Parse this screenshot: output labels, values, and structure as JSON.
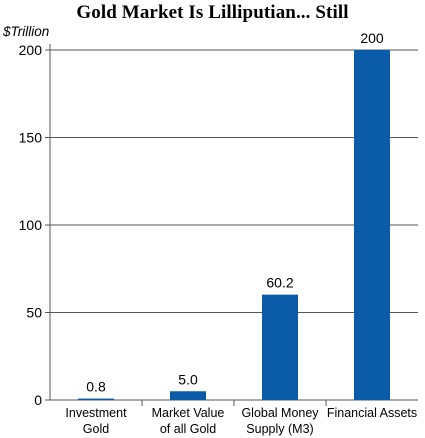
{
  "chart_data": {
    "type": "bar",
    "title": "Gold Market Is Lilliputian... Still",
    "ylabel": "$Trillion",
    "xlabel": "",
    "categories": [
      [
        "Investment",
        "Gold"
      ],
      [
        "Market Value",
        "of all Gold"
      ],
      [
        "Global Money",
        "Supply (M3)"
      ],
      [
        "Financial Assets"
      ]
    ],
    "values": [
      0.8,
      5.0,
      60.2,
      200
    ],
    "value_labels": [
      "0.8",
      "5.0",
      "60.2",
      "200"
    ],
    "ylim": [
      0,
      200
    ],
    "yticks": [
      0,
      50,
      100,
      150,
      200
    ],
    "grid": true,
    "bar_color": "#0a5ca8",
    "grid_color": "#555555"
  }
}
